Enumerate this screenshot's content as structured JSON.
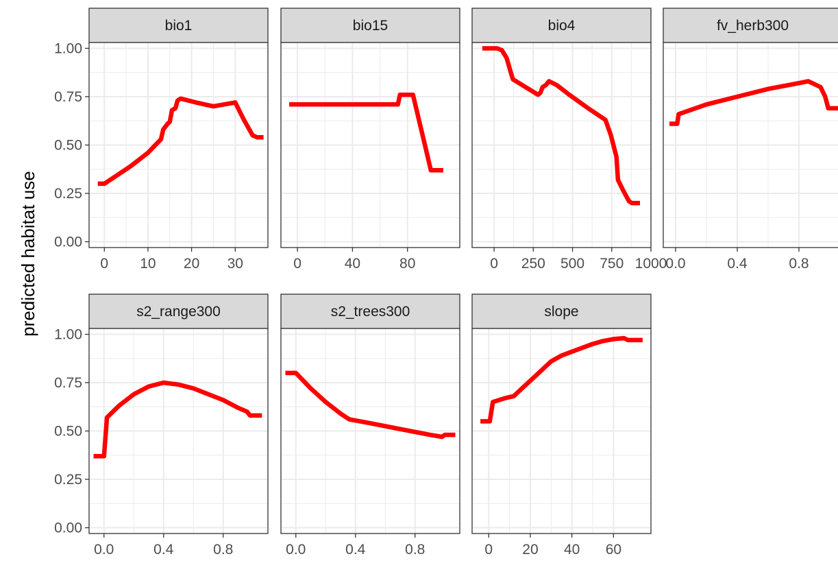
{
  "chart_data": {
    "type": "line",
    "layout": "facet-grid",
    "ylabel": "predicted habitat use",
    "xlabel": "",
    "ylim": [
      -0.03,
      1.03
    ],
    "y_ticks": [
      0,
      0.25,
      0.5,
      0.75,
      1
    ],
    "y_tick_labels": [
      "0.00",
      "0.25",
      "0.50",
      "0.75",
      "1.00"
    ],
    "grid": true,
    "legend": "none",
    "colors": {
      "line": "#ff0000",
      "strip_fill": "#d9d9d9",
      "strip_border": "#333333",
      "grid": "#ebebeb",
      "panel_border": "#333333"
    },
    "panels": [
      {
        "name": "bio1",
        "xlim": [
          -3.5,
          37.5
        ],
        "x_ticks": [
          0,
          10,
          20,
          30
        ],
        "x_tick_labels": [
          "0",
          "10",
          "20",
          "30"
        ],
        "points": [
          [
            -1.5,
            0.3
          ],
          [
            0,
            0.3
          ],
          [
            2,
            0.33
          ],
          [
            6,
            0.39
          ],
          [
            10,
            0.46
          ],
          [
            13,
            0.53
          ],
          [
            13.5,
            0.58
          ],
          [
            14.5,
            0.61
          ],
          [
            15,
            0.62
          ],
          [
            15.5,
            0.68
          ],
          [
            16.3,
            0.69
          ],
          [
            16.8,
            0.73
          ],
          [
            17.5,
            0.74
          ],
          [
            21,
            0.72
          ],
          [
            25,
            0.7
          ],
          [
            30,
            0.72
          ],
          [
            32,
            0.63
          ],
          [
            34,
            0.55
          ],
          [
            35,
            0.54
          ],
          [
            36.5,
            0.54
          ]
        ]
      },
      {
        "name": "bio15",
        "xlim": [
          -12,
          118
        ],
        "x_ticks": [
          0,
          40,
          80
        ],
        "x_tick_labels": [
          "0",
          "40",
          "80"
        ],
        "points": [
          [
            -6,
            0.71
          ],
          [
            73,
            0.71
          ],
          [
            74.5,
            0.76
          ],
          [
            84,
            0.76
          ],
          [
            92,
            0.52
          ],
          [
            97,
            0.37
          ],
          [
            106,
            0.37
          ]
        ]
      },
      {
        "name": "bio4",
        "xlim": [
          -140,
          1000
        ],
        "x_ticks": [
          0,
          250,
          500,
          750,
          1000
        ],
        "x_tick_labels": [
          "0",
          "250",
          "500",
          "750",
          "1000"
        ],
        "points": [
          [
            -75,
            1.0
          ],
          [
            20,
            1.0
          ],
          [
            50,
            0.99
          ],
          [
            80,
            0.95
          ],
          [
            105,
            0.88
          ],
          [
            120,
            0.84
          ],
          [
            180,
            0.81
          ],
          [
            260,
            0.77
          ],
          [
            280,
            0.76
          ],
          [
            295,
            0.77
          ],
          [
            310,
            0.8
          ],
          [
            330,
            0.81
          ],
          [
            350,
            0.83
          ],
          [
            400,
            0.81
          ],
          [
            480,
            0.76
          ],
          [
            600,
            0.69
          ],
          [
            710,
            0.63
          ],
          [
            745,
            0.55
          ],
          [
            780,
            0.44
          ],
          [
            790,
            0.32
          ],
          [
            820,
            0.27
          ],
          [
            860,
            0.21
          ],
          [
            878,
            0.2
          ],
          [
            930,
            0.2
          ]
        ]
      },
      {
        "name": "fv_herb300",
        "xlim": [
          -0.08,
          1.08
        ],
        "x_ticks": [
          0,
          0.4,
          0.8
        ],
        "x_tick_labels": [
          "0.0",
          "0.4",
          "0.8"
        ],
        "points": [
          [
            -0.04,
            0.61
          ],
          [
            0.01,
            0.61
          ],
          [
            0.02,
            0.66
          ],
          [
            0.2,
            0.71
          ],
          [
            0.4,
            0.75
          ],
          [
            0.6,
            0.79
          ],
          [
            0.8,
            0.82
          ],
          [
            0.86,
            0.83
          ],
          [
            0.94,
            0.8
          ],
          [
            0.97,
            0.75
          ],
          [
            0.99,
            0.69
          ],
          [
            1.07,
            0.69
          ]
        ]
      },
      {
        "name": "s2_range300",
        "xlim": [
          -0.1,
          1.1
        ],
        "x_ticks": [
          0,
          0.4,
          0.8
        ],
        "x_tick_labels": [
          "0.0",
          "0.4",
          "0.8"
        ],
        "points": [
          [
            -0.07,
            0.37
          ],
          [
            0.0,
            0.37
          ],
          [
            0.02,
            0.57
          ],
          [
            0.1,
            0.63
          ],
          [
            0.2,
            0.69
          ],
          [
            0.3,
            0.73
          ],
          [
            0.4,
            0.75
          ],
          [
            0.5,
            0.74
          ],
          [
            0.6,
            0.72
          ],
          [
            0.7,
            0.69
          ],
          [
            0.8,
            0.66
          ],
          [
            0.9,
            0.62
          ],
          [
            0.96,
            0.6
          ],
          [
            0.98,
            0.58
          ],
          [
            1.06,
            0.58
          ]
        ]
      },
      {
        "name": "s2_trees300",
        "xlim": [
          -0.1,
          1.1
        ],
        "x_ticks": [
          0,
          0.4,
          0.8
        ],
        "x_tick_labels": [
          "0.0",
          "0.4",
          "0.8"
        ],
        "points": [
          [
            -0.07,
            0.8
          ],
          [
            0.0,
            0.8
          ],
          [
            0.1,
            0.72
          ],
          [
            0.2,
            0.65
          ],
          [
            0.3,
            0.59
          ],
          [
            0.36,
            0.56
          ],
          [
            0.5,
            0.54
          ],
          [
            0.7,
            0.51
          ],
          [
            0.9,
            0.48
          ],
          [
            0.98,
            0.47
          ],
          [
            1.0,
            0.48
          ],
          [
            1.07,
            0.48
          ]
        ]
      },
      {
        "name": "slope",
        "xlim": [
          -8,
          78
        ],
        "x_ticks": [
          0,
          20,
          40,
          60
        ],
        "x_tick_labels": [
          "0",
          "20",
          "40",
          "60"
        ],
        "points": [
          [
            -4,
            0.55
          ],
          [
            0.5,
            0.55
          ],
          [
            2,
            0.65
          ],
          [
            8,
            0.67
          ],
          [
            12,
            0.68
          ],
          [
            16,
            0.72
          ],
          [
            20,
            0.76
          ],
          [
            26,
            0.82
          ],
          [
            30,
            0.86
          ],
          [
            35,
            0.89
          ],
          [
            40,
            0.91
          ],
          [
            45,
            0.93
          ],
          [
            50,
            0.95
          ],
          [
            55,
            0.965
          ],
          [
            60,
            0.975
          ],
          [
            65,
            0.98
          ],
          [
            67,
            0.97
          ],
          [
            74,
            0.97
          ]
        ]
      }
    ]
  }
}
